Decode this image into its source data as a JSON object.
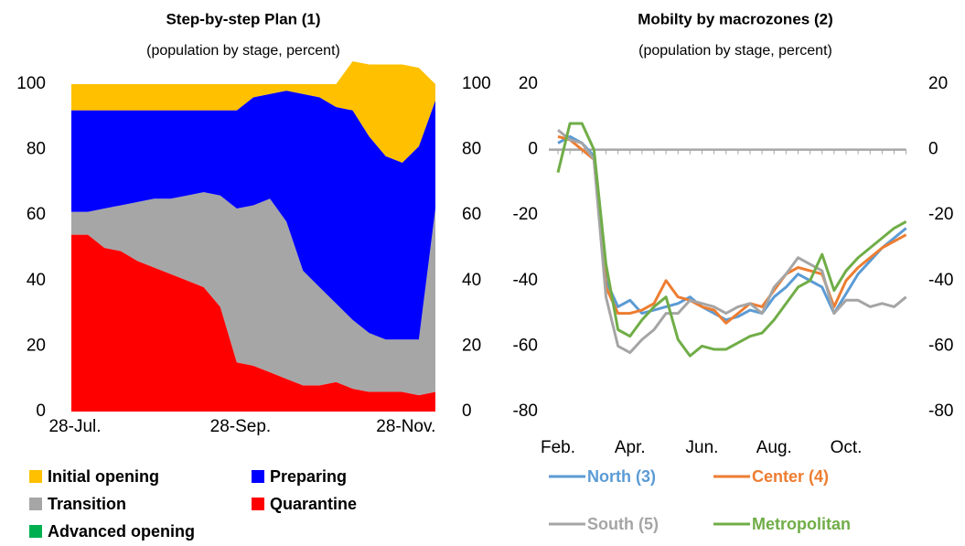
{
  "chart_data": [
    {
      "type": "area",
      "stacked": true,
      "title": "Step-by-step Plan (1)",
      "subtitle": "(population by stage, percent)",
      "categories": [
        "28-Jul.",
        null,
        null,
        null,
        null,
        null,
        null,
        null,
        null,
        null,
        "28-Sep.",
        null,
        null,
        null,
        null,
        null,
        null,
        null,
        null,
        null,
        "28-Nov.",
        null,
        null
      ],
      "series": [
        {
          "name": "Quarantine",
          "color": "#ff0000",
          "values": [
            54,
            54,
            50,
            49,
            46,
            44,
            42,
            40,
            38,
            32,
            15,
            14,
            12,
            10,
            8,
            8,
            9,
            7,
            6,
            6,
            6,
            5,
            6
          ]
        },
        {
          "name": "Transition",
          "color": "#a6a6a6",
          "values": [
            7,
            7,
            12,
            14,
            18,
            21,
            23,
            26,
            29,
            34,
            47,
            49,
            53,
            48,
            35,
            30,
            24,
            21,
            18,
            16,
            16,
            17,
            56
          ]
        },
        {
          "name": "Preparing",
          "color": "#0000ff",
          "values": [
            31,
            31,
            30,
            29,
            28,
            27,
            27,
            26,
            25,
            26,
            30,
            33,
            32,
            40,
            54,
            58,
            60,
            64,
            60,
            56,
            54,
            59,
            33
          ]
        },
        {
          "name": "Initial opening",
          "color": "#ffc000",
          "values": [
            8,
            8,
            8,
            8,
            8,
            8,
            8,
            8,
            8,
            8,
            8,
            4,
            3,
            2,
            3,
            4,
            7,
            15,
            22,
            28,
            30,
            24,
            5
          ]
        },
        {
          "name": "Advanced opening",
          "color": "#00b050",
          "values": [
            0,
            0,
            0,
            0,
            0,
            0,
            0,
            0,
            0,
            0,
            0,
            0,
            0,
            0,
            0,
            0,
            0,
            0,
            0,
            0,
            0,
            0,
            0
          ]
        }
      ],
      "ylim": [
        0,
        100
      ],
      "yticks": [
        0,
        20,
        40,
        60,
        80,
        100
      ],
      "y2lim": [
        0,
        100
      ],
      "y2ticks": [
        0,
        20,
        40,
        60,
        80,
        100
      ]
    },
    {
      "type": "line",
      "title": "Mobilty by macrozones (2)",
      "subtitle": "(population by stage, percent)",
      "categories": [
        "Feb.",
        null,
        null,
        null,
        null,
        null,
        "Apr.",
        null,
        null,
        null,
        null,
        null,
        "Jun.",
        null,
        null,
        null,
        null,
        null,
        "Aug.",
        null,
        null,
        null,
        null,
        null,
        "Oct.",
        null,
        null,
        null,
        null,
        null
      ],
      "series": [
        {
          "name": "North (3)",
          "color": "#5b9bd5",
          "values": [
            2,
            4,
            2,
            -2,
            -40,
            -48,
            -46,
            -50,
            -49,
            -48,
            -47,
            -45,
            -48,
            -50,
            -52,
            -51,
            -49,
            -50,
            -45,
            -42,
            -38,
            -40,
            -42,
            -50,
            -44,
            -38,
            -34,
            -30,
            -27,
            -24
          ]
        },
        {
          "name": "Center (4)",
          "color": "#ed7d31",
          "values": [
            4,
            3,
            0,
            -3,
            -42,
            -50,
            -50,
            -49,
            -47,
            -40,
            -45,
            -46,
            -48,
            -49,
            -53,
            -50,
            -47,
            -48,
            -43,
            -38,
            -36,
            -37,
            -38,
            -48,
            -40,
            -36,
            -33,
            -30,
            -28,
            -26
          ]
        },
        {
          "name": "South (5)",
          "color": "#a5a5a5",
          "values": [
            6,
            3,
            2,
            -3,
            -45,
            -60,
            -62,
            -58,
            -55,
            -50,
            -50,
            -46,
            -47,
            -48,
            -50,
            -48,
            -47,
            -50,
            -42,
            -38,
            -33,
            -35,
            -37,
            -50,
            -46,
            -46,
            -48,
            -47,
            -48,
            -45
          ]
        },
        {
          "name": "Metropolitan",
          "color": "#70ad47",
          "values": [
            -7,
            8,
            8,
            0,
            -35,
            -55,
            -57,
            -52,
            -48,
            -45,
            -58,
            -63,
            -60,
            -61,
            -61,
            -59,
            -57,
            -56,
            -52,
            -47,
            -42,
            -40,
            -32,
            -43,
            -37,
            -33,
            -30,
            -27,
            -24,
            -22
          ]
        }
      ],
      "ylim": [
        -80,
        20
      ],
      "yticks": [
        -80,
        -60,
        -40,
        -20,
        0,
        20
      ],
      "y2lim": [
        -80,
        20
      ],
      "y2ticks": [
        -80,
        -60,
        -40,
        -20,
        0,
        20
      ]
    }
  ]
}
